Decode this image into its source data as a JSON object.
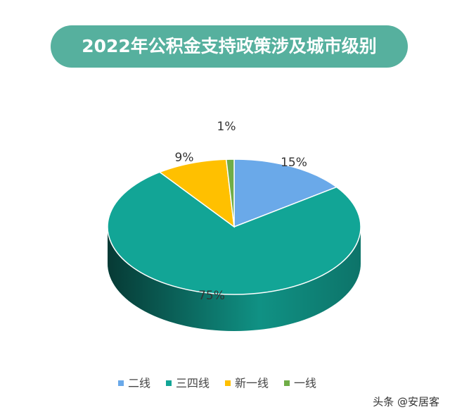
{
  "chart_data": {
    "type": "pie3d",
    "title": "2022年公积金支持政策涉及城市级别",
    "categories": [
      "二线",
      "三四线",
      "新一线",
      "一线"
    ],
    "values": [
      15,
      75,
      9,
      1
    ],
    "value_labels": [
      "15%",
      "75%",
      "9%",
      "1%"
    ],
    "colors": [
      "#6aa9e9",
      "#12a596",
      "#ffc000",
      "#70ad47"
    ],
    "legend": "bottom"
  },
  "watermark": "头条 @安居客"
}
